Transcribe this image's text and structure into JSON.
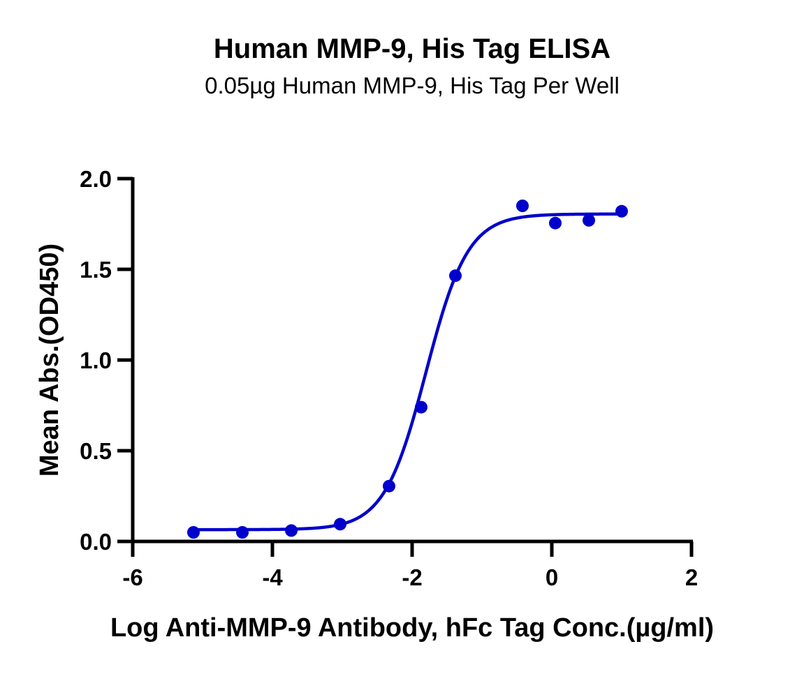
{
  "chart_data": {
    "type": "scatter",
    "title": "Human MMP-9, His Tag ELISA",
    "subtitle": "0.05µg Human MMP-9, His Tag Per Well",
    "xlabel": "Log Anti-MMP-9 Antibody, hFc Tag Conc.(µg/ml)",
    "ylabel": "Mean Abs.(OD450)",
    "xlim": [
      -6,
      2
    ],
    "ylim": [
      0,
      2.0
    ],
    "x_ticks": [
      "-6",
      "-4",
      "-2",
      "0",
      "2"
    ],
    "y_ticks": [
      "0.0",
      "0.5",
      "1.0",
      "1.5",
      "2.0"
    ],
    "grid": false,
    "series": [
      {
        "color": "#0000cc",
        "x": [
          -5.13,
          -4.43,
          -3.73,
          -3.03,
          -2.33,
          -1.87,
          -1.38,
          -0.42,
          0.05,
          0.53,
          1.0
        ],
        "y": [
          0.05,
          0.05,
          0.06,
          0.095,
          0.305,
          0.74,
          1.465,
          1.85,
          1.755,
          1.77,
          1.82
        ],
        "fit": {
          "model": "4PL",
          "bottom": 0.065,
          "top": 1.805,
          "log_ec50": -1.8,
          "hill": 1.45,
          "x_range": [
            -5.13,
            1.0
          ]
        }
      }
    ]
  }
}
